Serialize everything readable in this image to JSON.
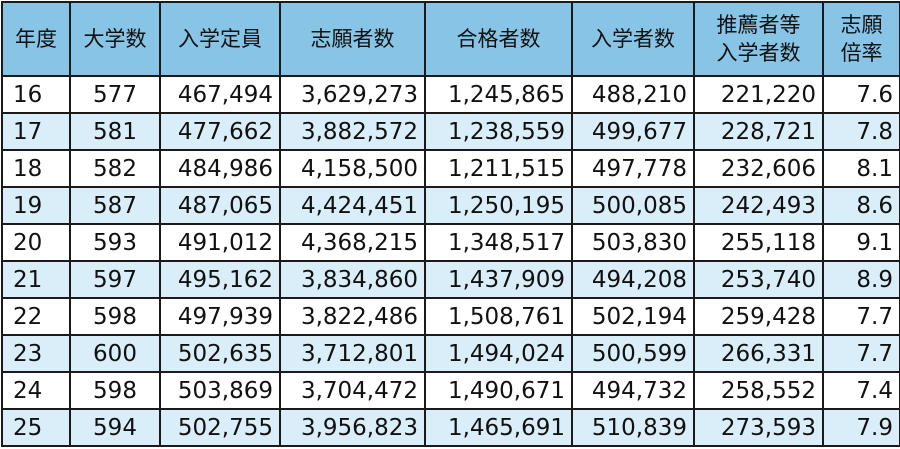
{
  "table": {
    "headers": [
      [
        "年度"
      ],
      [
        "大学数"
      ],
      [
        "入学定員"
      ],
      [
        "志願者数"
      ],
      [
        "合格者数"
      ],
      [
        "入学者数"
      ],
      [
        "推薦者等",
        "入学者数"
      ],
      [
        "志願",
        "倍率"
      ]
    ],
    "rows": [
      [
        "16",
        "577",
        "467,494",
        "3,629,273",
        "1,245,865",
        "488,210",
        "221,220",
        "7.6"
      ],
      [
        "17",
        "581",
        "477,662",
        "3,882,572",
        "1,238,559",
        "499,677",
        "228,721",
        "7.8"
      ],
      [
        "18",
        "582",
        "484,986",
        "4,158,500",
        "1,211,515",
        "497,778",
        "232,606",
        "8.1"
      ],
      [
        "19",
        "587",
        "487,065",
        "4,424,451",
        "1,250,195",
        "500,085",
        "242,493",
        "8.6"
      ],
      [
        "20",
        "593",
        "491,012",
        "4,368,215",
        "1,348,517",
        "503,830",
        "255,118",
        "9.1"
      ],
      [
        "21",
        "597",
        "495,162",
        "3,834,860",
        "1,437,909",
        "494,208",
        "253,740",
        "8.9"
      ],
      [
        "22",
        "598",
        "497,939",
        "3,822,486",
        "1,508,761",
        "502,194",
        "259,428",
        "7.7"
      ],
      [
        "23",
        "600",
        "502,635",
        "3,712,801",
        "1,494,024",
        "500,599",
        "266,331",
        "7.7"
      ],
      [
        "24",
        "598",
        "503,869",
        "3,704,472",
        "1,490,671",
        "494,732",
        "258,552",
        "7.4"
      ],
      [
        "25",
        "594",
        "502,755",
        "3,956,823",
        "1,465,691",
        "510,839",
        "273,593",
        "7.9"
      ]
    ]
  },
  "colors": {
    "header_bg": "#87c4e6",
    "stripe_bg": "#d9eef8",
    "border": "#1a1a1a"
  }
}
